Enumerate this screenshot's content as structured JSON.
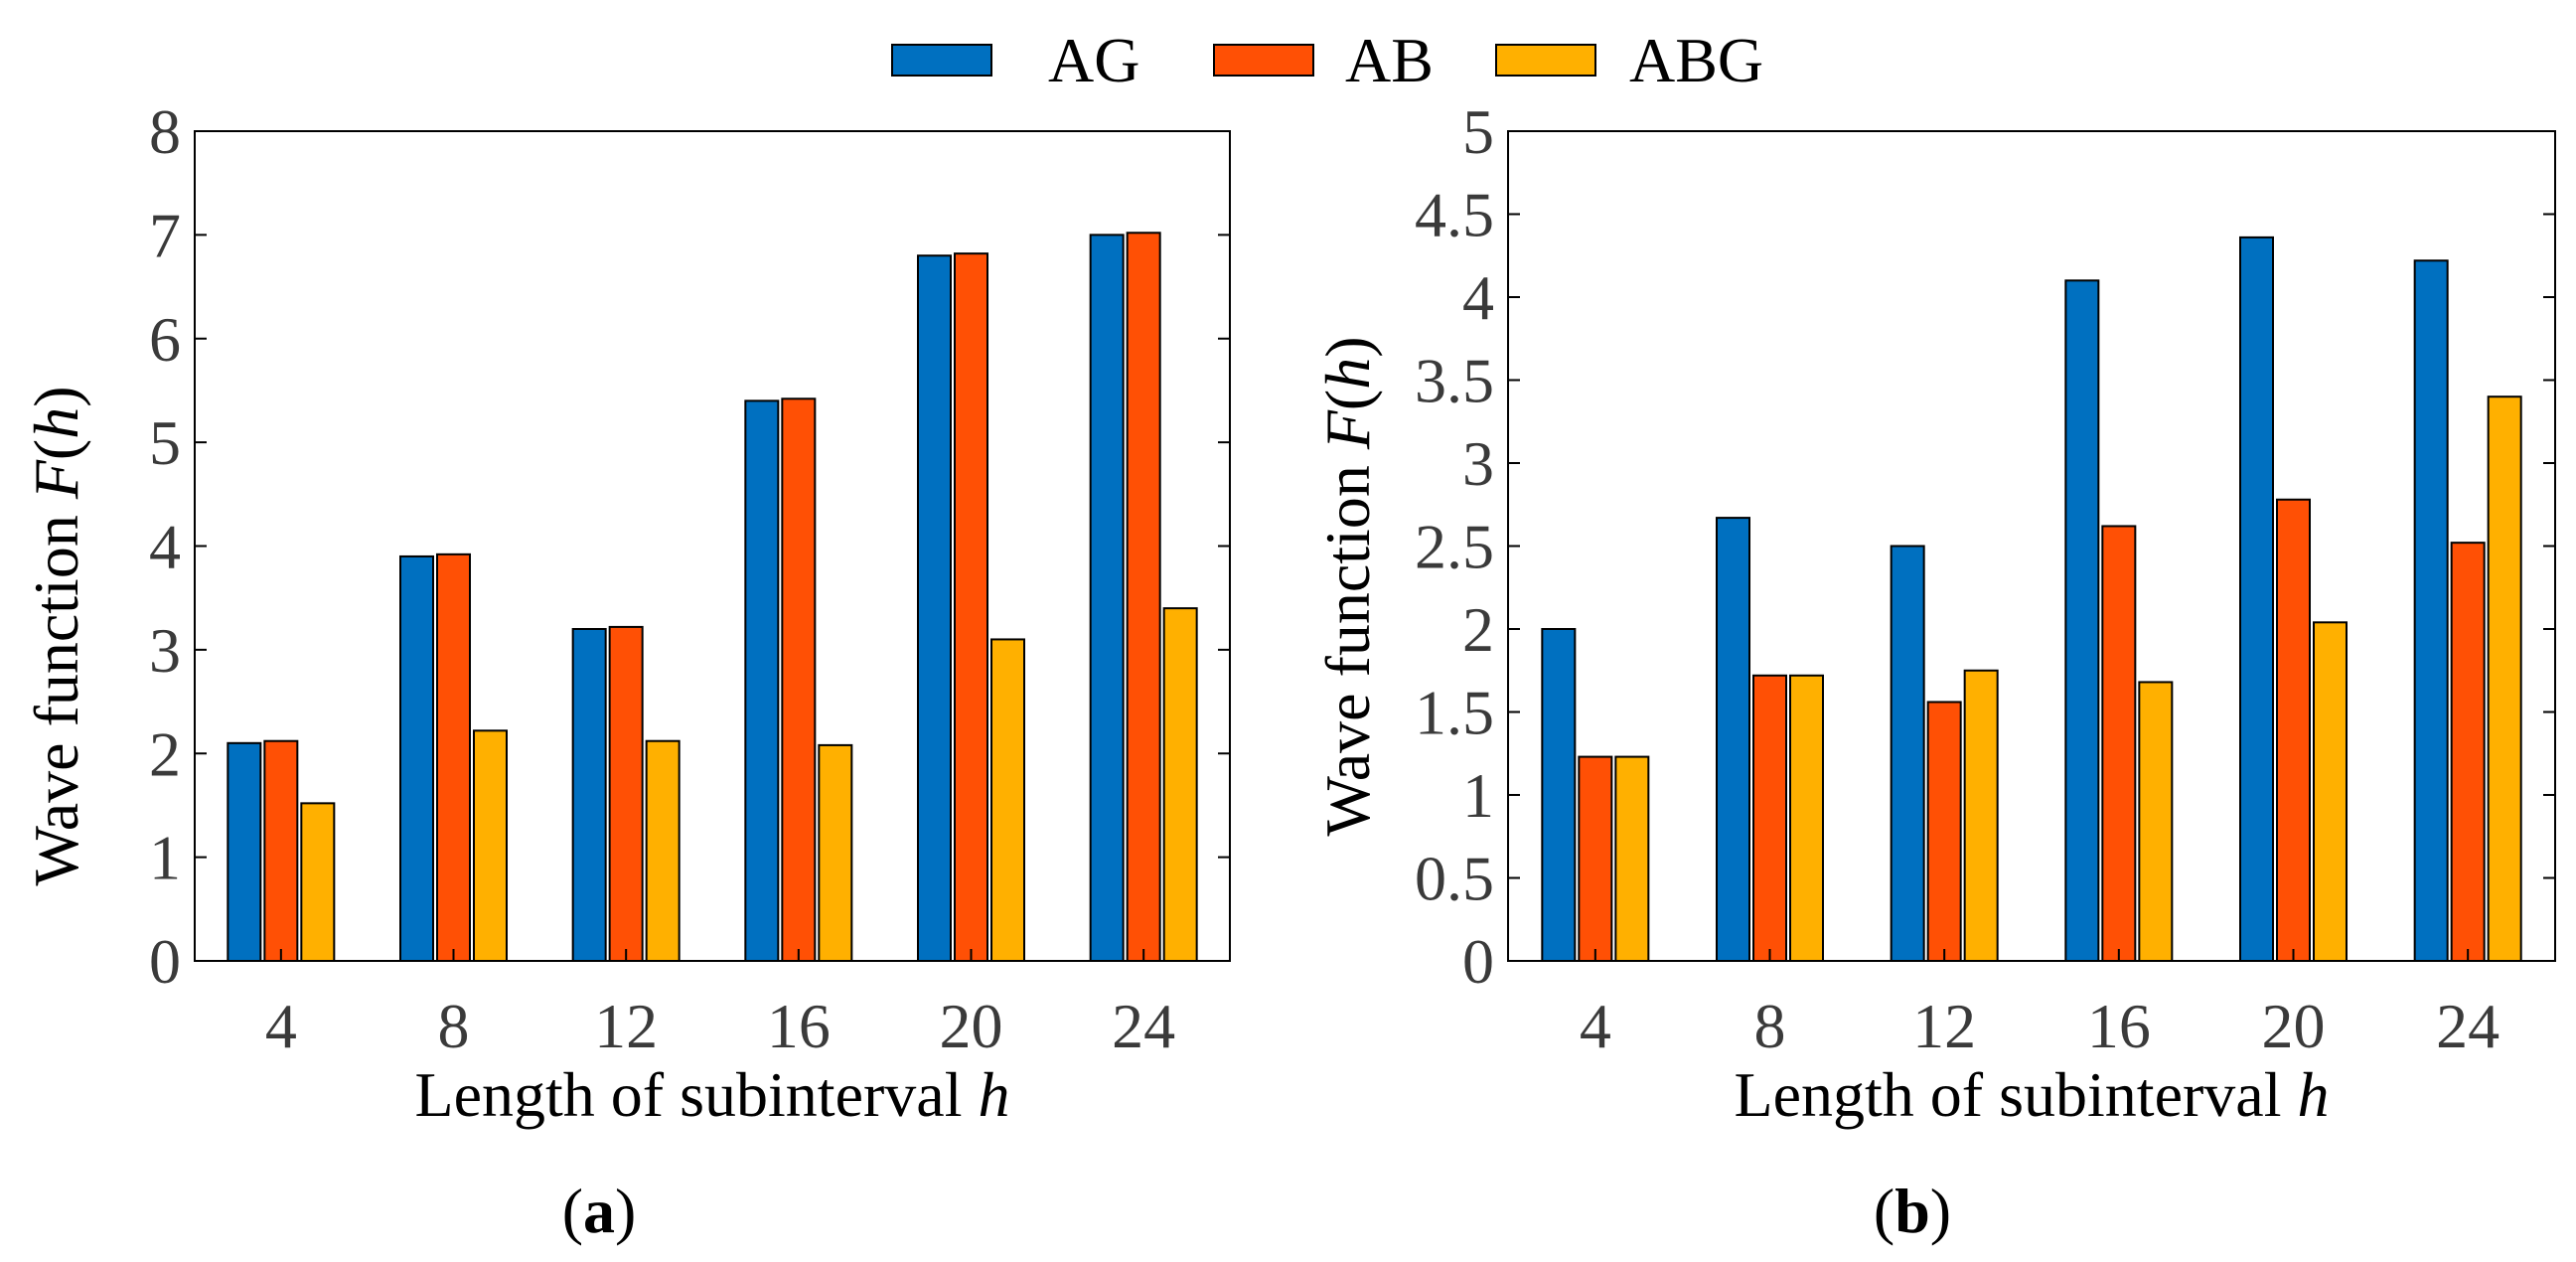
{
  "legend": {
    "items": [
      {
        "name": "AG",
        "color": "#0070C0"
      },
      {
        "name": "AB",
        "color": "#FF5005"
      },
      {
        "name": "ABG",
        "color": "#FFB000"
      }
    ]
  },
  "chart_data": [
    {
      "type": "bar",
      "panel_label": {
        "open": "(",
        "letter": "a",
        "close": ")"
      },
      "categories": [
        "4",
        "8",
        "12",
        "16",
        "20",
        "24"
      ],
      "series": [
        {
          "name": "AG",
          "values": [
            2.1,
            3.9,
            3.2,
            5.4,
            6.8,
            7.0
          ]
        },
        {
          "name": "AB",
          "values": [
            2.12,
            3.92,
            3.22,
            5.42,
            6.82,
            7.02
          ]
        },
        {
          "name": "ABG",
          "values": [
            1.52,
            2.22,
            2.12,
            2.08,
            3.1,
            3.4
          ]
        }
      ],
      "ylim": [
        0,
        8
      ],
      "yticks": [
        "0",
        "1",
        "2",
        "3",
        "4",
        "5",
        "6",
        "7",
        "8"
      ],
      "xlabel": {
        "text": "Length of subinterval ",
        "var": "h"
      },
      "ylabel": {
        "text": "Wave function ",
        "fn": "F",
        "open": "(",
        "var": "h",
        "close": ")"
      }
    },
    {
      "type": "bar",
      "panel_label": {
        "open": "(",
        "letter": "b",
        "close": ")"
      },
      "categories": [
        "4",
        "8",
        "12",
        "16",
        "20",
        "24"
      ],
      "series": [
        {
          "name": "AG",
          "values": [
            2.0,
            2.67,
            2.5,
            4.1,
            4.36,
            4.22
          ]
        },
        {
          "name": "AB",
          "values": [
            1.23,
            1.72,
            1.56,
            2.62,
            2.78,
            2.52
          ]
        },
        {
          "name": "ABG",
          "values": [
            1.23,
            1.72,
            1.75,
            1.68,
            2.04,
            3.4
          ]
        }
      ],
      "ylim": [
        0,
        5
      ],
      "yticks": [
        "0",
        "0.5",
        "1",
        "1.5",
        "2",
        "2.5",
        "3",
        "3.5",
        "4",
        "4.5",
        "5"
      ],
      "xlabel": {
        "text": "Length of subinterval ",
        "var": "h"
      },
      "ylabel": {
        "text": "Wave function ",
        "fn": "F",
        "open": "(",
        "var": "h",
        "close": ")"
      }
    }
  ]
}
